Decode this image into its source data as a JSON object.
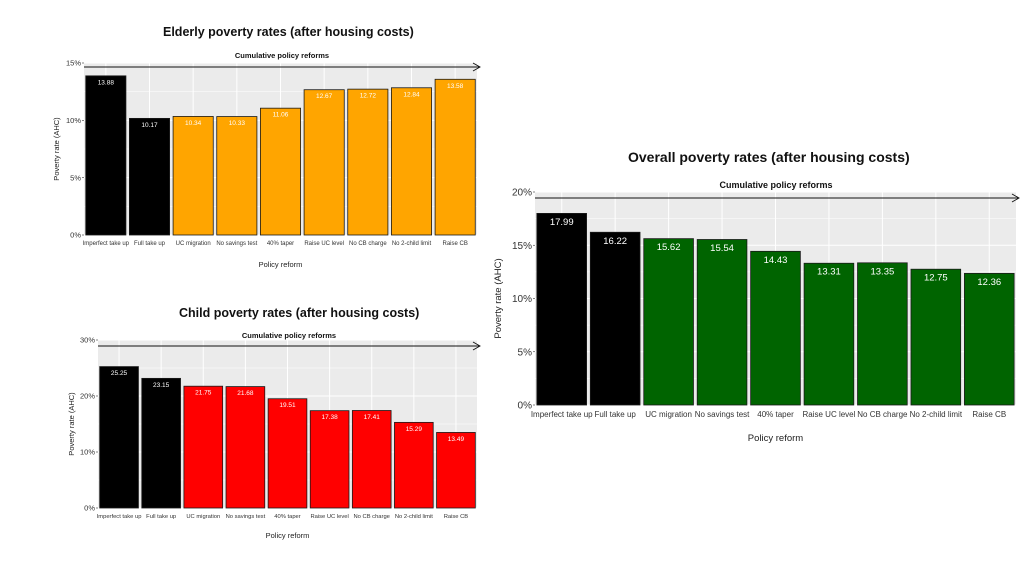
{
  "page": {
    "background": "#ffffff",
    "panel_background": "#ebebeb",
    "gridline_color": "#ffffff"
  },
  "chart_data": [
    {
      "id": "elderly",
      "type": "bar",
      "title": "Elderly poverty rates (after housing costs)",
      "subtitle": "Cumulative policy reforms",
      "xlabel": "Policy reform",
      "ylabel": "Poverty rate (AHC)",
      "categories": [
        "Imperfect take up",
        "Full take up",
        "UC migration",
        "No savings test",
        "40% taper",
        "Raise UC level",
        "No CB charge",
        "No 2-child limit",
        "Raise CB"
      ],
      "values": [
        13.88,
        10.17,
        10.34,
        10.33,
        11.06,
        12.67,
        12.72,
        12.84,
        13.58
      ],
      "value_labels": [
        "13.88",
        "10.17",
        "10.34",
        "10.33",
        "11.06",
        "12.67",
        "12.72",
        "12.84",
        "13.58"
      ],
      "bar_colors": [
        "#000000",
        "#000000",
        "#ffa500",
        "#ffa500",
        "#ffa500",
        "#ffa500",
        "#ffa500",
        "#ffa500",
        "#ffa500"
      ],
      "ylim": [
        0,
        15
      ],
      "yticks": [
        0,
        5,
        10,
        15
      ],
      "ytick_labels": [
        "0%",
        "5%",
        "10%",
        "15%"
      ],
      "grid": true,
      "legend": "none"
    },
    {
      "id": "child",
      "type": "bar",
      "title": "Child poverty rates (after housing costs)",
      "subtitle": "Cumulative policy reforms",
      "xlabel": "Policy reform",
      "ylabel": "Poverty rate (AHC)",
      "categories": [
        "Imperfect take up",
        "Full take up",
        "UC migration",
        "No savings test",
        "40% taper",
        "Raise UC level",
        "No CB charge",
        "No 2-child limit",
        "Raise CB"
      ],
      "values": [
        25.25,
        23.15,
        21.75,
        21.68,
        19.51,
        17.38,
        17.41,
        15.29,
        13.49
      ],
      "value_labels": [
        "25.25",
        "23.15",
        "21.75",
        "21.68",
        "19.51",
        "17.38",
        "17.41",
        "15.29",
        "13.49"
      ],
      "bar_colors": [
        "#000000",
        "#000000",
        "#ff0000",
        "#ff0000",
        "#ff0000",
        "#ff0000",
        "#ff0000",
        "#ff0000",
        "#ff0000"
      ],
      "ylim": [
        0,
        30
      ],
      "yticks": [
        0,
        10,
        20,
        30
      ],
      "ytick_labels": [
        "0%",
        "10%",
        "20%",
        "30%"
      ],
      "grid": true,
      "legend": "none"
    },
    {
      "id": "overall",
      "type": "bar",
      "title": "Overall poverty rates (after housing costs)",
      "subtitle": "Cumulative policy reforms",
      "xlabel": "Policy reform",
      "ylabel": "Poverty rate (AHC)",
      "categories": [
        "Imperfect take up",
        "Full take up",
        "UC migration",
        "No savings test",
        "40% taper",
        "Raise UC level",
        "No CB charge",
        "No 2-child limit",
        "Raise CB"
      ],
      "values": [
        17.99,
        16.22,
        15.62,
        15.54,
        14.43,
        13.31,
        13.35,
        12.75,
        12.36
      ],
      "value_labels": [
        "17.99",
        "16.22",
        "15.62",
        "15.54",
        "14.43",
        "13.31",
        "13.35",
        "12.75",
        "12.36"
      ],
      "bar_colors": [
        "#000000",
        "#000000",
        "#006400",
        "#006400",
        "#006400",
        "#006400",
        "#006400",
        "#006400",
        "#006400"
      ],
      "ylim": [
        0,
        20
      ],
      "yticks": [
        0,
        5,
        10,
        15,
        20
      ],
      "ytick_labels": [
        "0%",
        "5%",
        "10%",
        "15%",
        "20%"
      ],
      "grid": true,
      "legend": "none"
    }
  ]
}
